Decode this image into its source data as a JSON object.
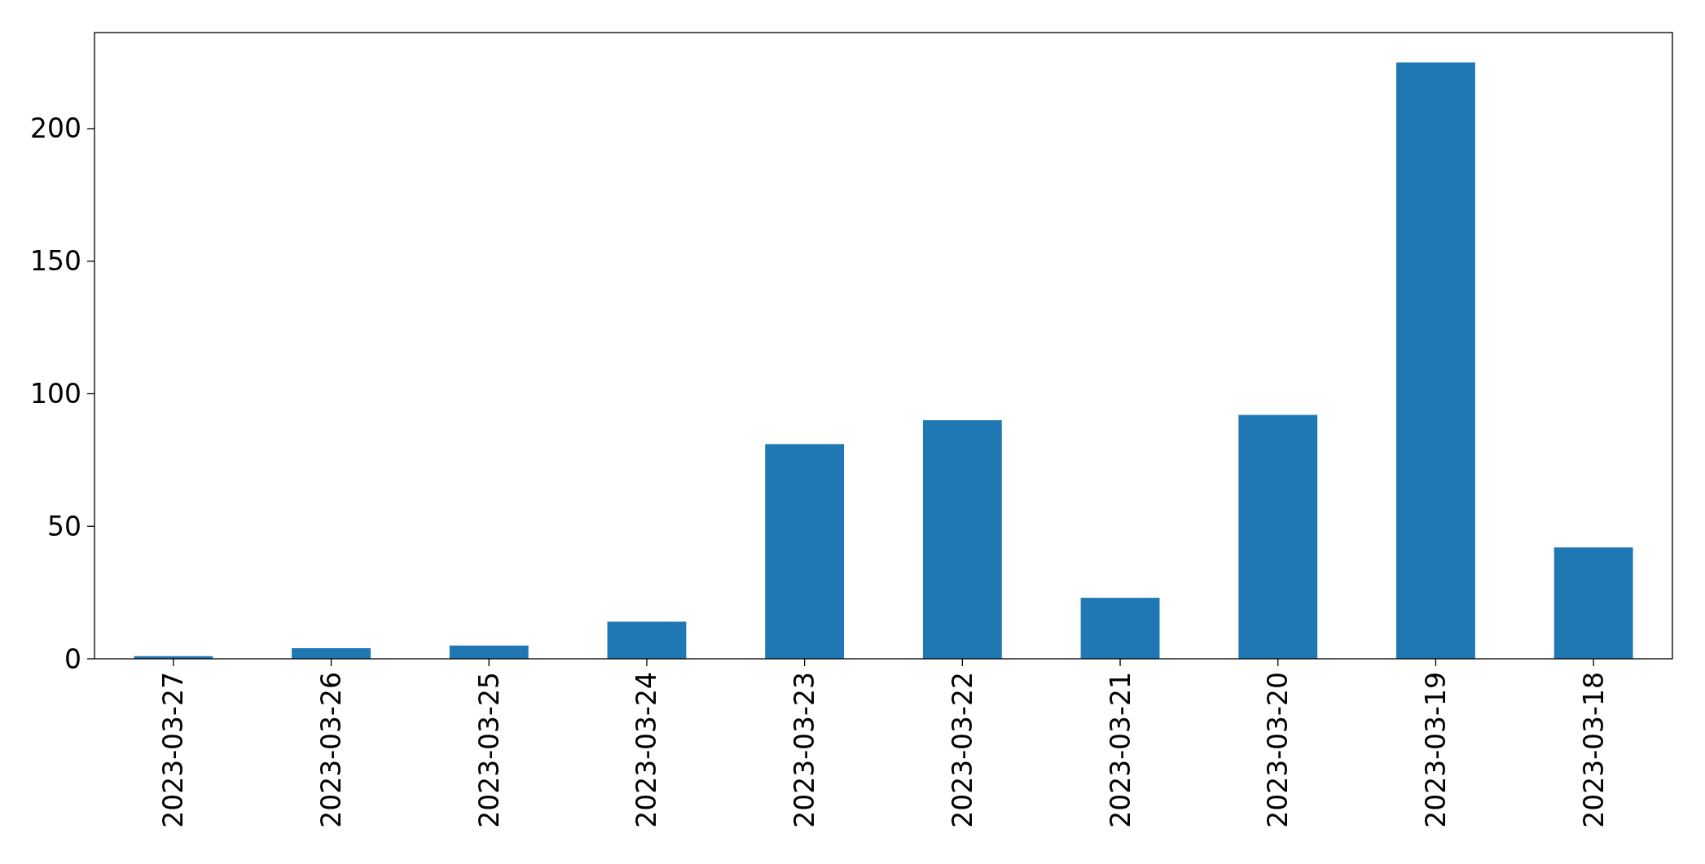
{
  "chart_data": {
    "type": "bar",
    "categories": [
      "2023-03-27",
      "2023-03-26",
      "2023-03-25",
      "2023-03-24",
      "2023-03-23",
      "2023-03-22",
      "2023-03-21",
      "2023-03-20",
      "2023-03-19",
      "2023-03-18"
    ],
    "values": [
      1,
      4,
      5,
      14,
      81,
      90,
      23,
      92,
      225,
      42
    ],
    "color": "#1f77b4",
    "ylim": [
      0,
      236.25
    ],
    "yticks": [
      0,
      50,
      100,
      150,
      200
    ],
    "grid": false
  }
}
